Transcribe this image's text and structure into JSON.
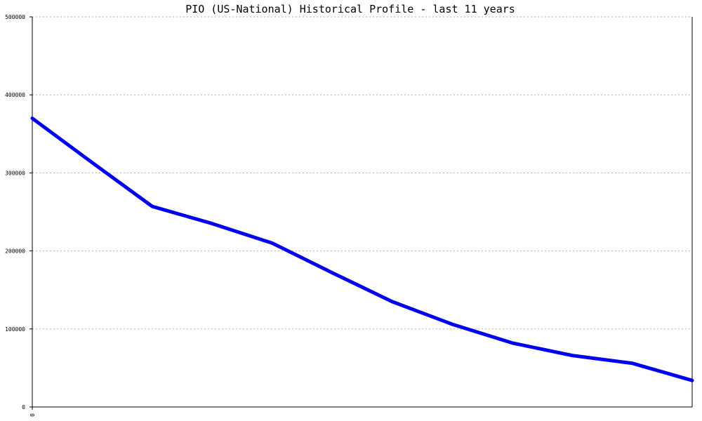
{
  "chart_data": {
    "type": "line",
    "title": "PIO (US-National) Historical Profile - last 11 years",
    "xlabel": "",
    "ylabel": "",
    "ylim": [
      0,
      500000
    ],
    "y_ticks": [
      "0",
      "100000",
      "200000",
      "300000",
      "400000",
      "500000"
    ],
    "x_tick_labels": [
      "0"
    ],
    "grid": true,
    "series": [
      {
        "color": "#0000ee",
        "x": [
          0,
          1,
          2,
          3,
          4,
          5,
          6,
          7,
          8,
          9,
          10,
          11
        ],
        "values": [
          370000,
          313000,
          257000,
          235000,
          210000,
          172000,
          135000,
          106000,
          82000,
          66000,
          56000,
          34000
        ]
      }
    ]
  }
}
